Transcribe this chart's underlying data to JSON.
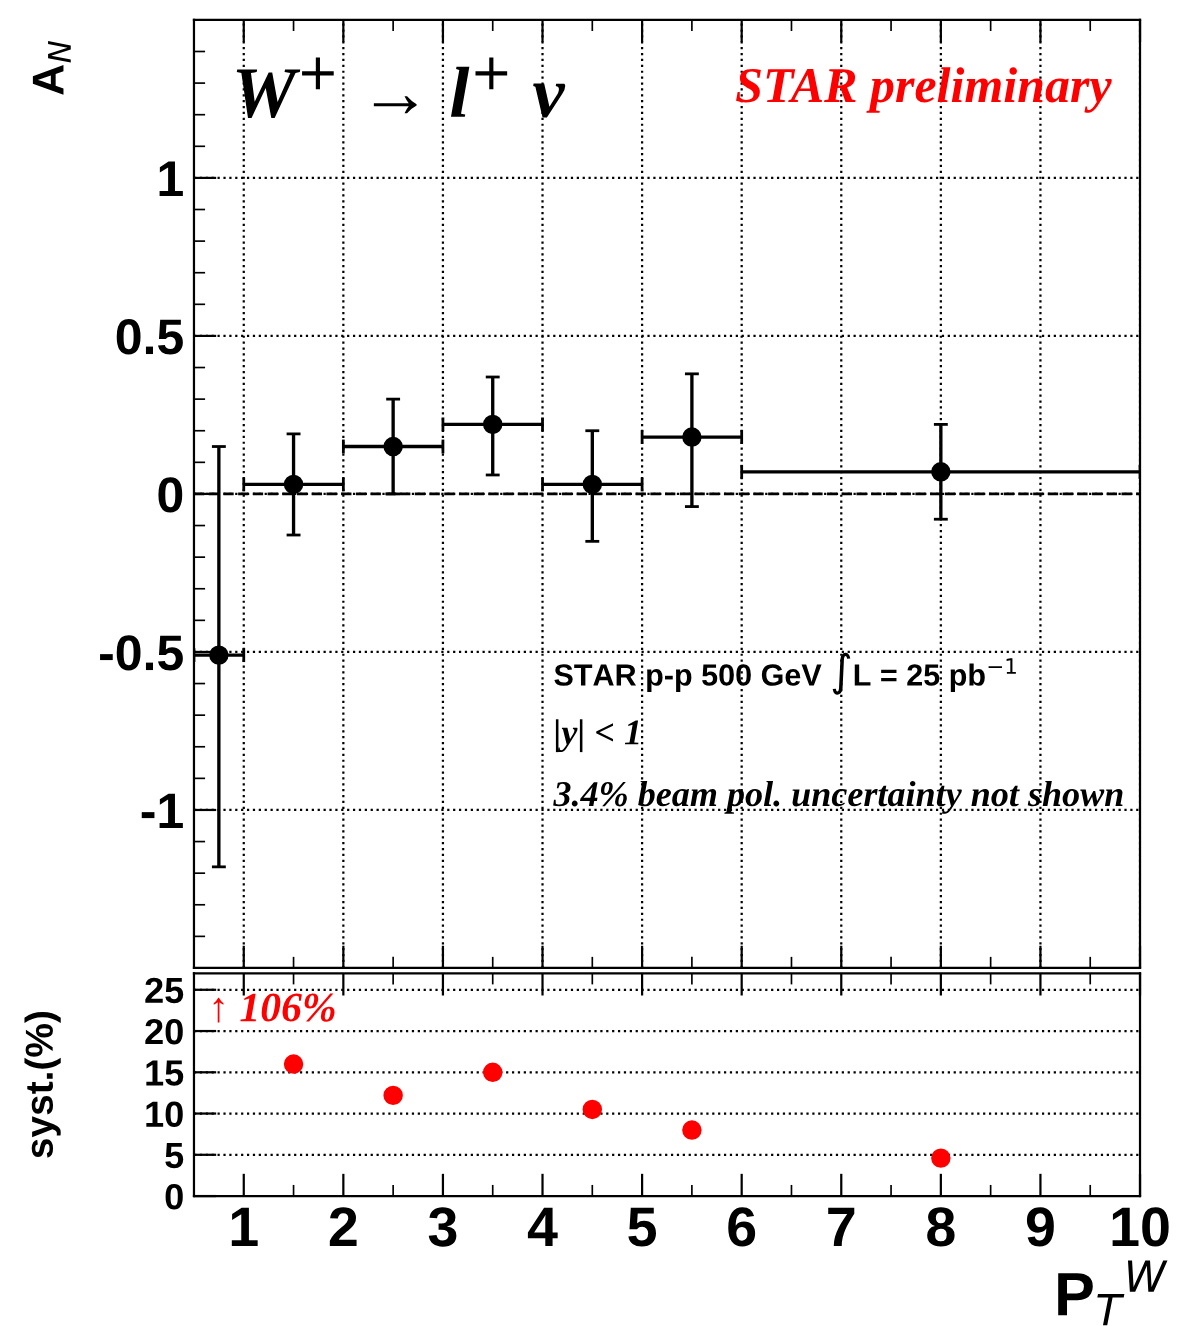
{
  "chart_data": [
    {
      "type": "scatter",
      "ylabel": "A$_{N}$",
      "annotations": [
        "W$^{+}$ → l$^{+}$ ν",
        "STAR preliminary",
        "STAR p-p 500 GeV ∫L = 25 pb$^{−1}$",
        "|y| < 1",
        "3.4% beam pol. uncertainty not shown"
      ],
      "x": [
        0.75,
        1.5,
        2.5,
        3.5,
        4.5,
        5.5,
        8
      ],
      "series": [
        {
          "color": "#000000",
          "values": [
            -0.51,
            0.03,
            0.15,
            0.22,
            0.03,
            0.18,
            0.07
          ],
          "errors": [
            [
              -1.18,
              0.15
            ],
            [
              -0.13,
              0.19
            ],
            [
              0.0,
              0.3
            ],
            [
              0.06,
              0.37
            ],
            [
              -0.15,
              0.2
            ],
            [
              -0.04,
              0.38
            ],
            [
              -0.08,
              0.22
            ]
          ],
          "xerrors": [
            0.25,
            0.5,
            0.5,
            0.5,
            0.5,
            0.5,
            2
          ]
        }
      ],
      "xlim": [
        0.5,
        10
      ],
      "xticks": [
        1,
        2,
        3,
        4,
        5,
        6,
        7,
        8,
        9,
        10
      ],
      "ylim": [
        -1.5,
        1.5
      ],
      "yticks": [
        -1,
        -0.5,
        0,
        0.5,
        1
      ],
      "tick_labels": "y",
      "grid": true,
      "marker": "circle",
      "ref_lines": [
        {
          "axis": "y",
          "value": 0,
          "line_style": "dashed",
          "color": "#000000"
        }
      ]
    },
    {
      "type": "scatter",
      "ylabel": "syst.(%)",
      "xlabel": "P$_{T}$$^{W}$",
      "annotations": [
        "↑ 106%"
      ],
      "x": [
        1.5,
        2.5,
        3.5,
        4.5,
        5.5,
        8
      ],
      "series": [
        {
          "color": "#ff0000",
          "values": [
            16,
            12.2,
            15,
            10.5,
            8,
            4.6
          ]
        }
      ],
      "xlim": [
        0.5,
        10
      ],
      "xticks": [
        1,
        2,
        3,
        4,
        5,
        6,
        7,
        8,
        9,
        10
      ],
      "ylim": [
        0,
        27
      ],
      "yticks": [
        0,
        5,
        10,
        15,
        20,
        25
      ],
      "grid": "y",
      "marker": "circle"
    }
  ]
}
